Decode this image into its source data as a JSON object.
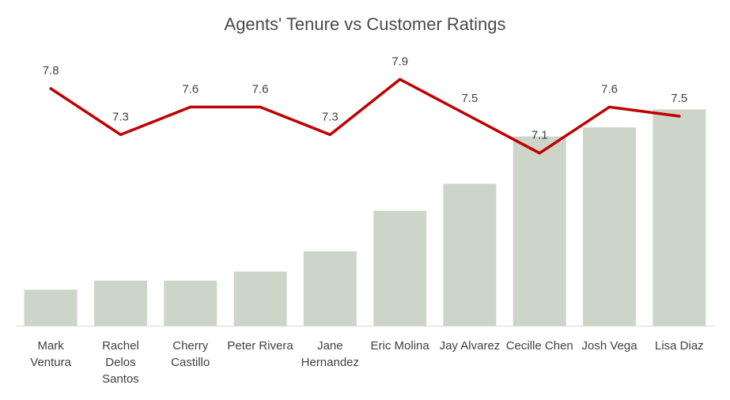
{
  "chart_data": {
    "type": "bar",
    "title": "Agents' Tenure vs Customer Ratings",
    "categories": [
      [
        "Mark",
        "Ventura"
      ],
      [
        "Rachel",
        "Delos",
        "Santos"
      ],
      [
        "Cherry",
        "Castillo"
      ],
      [
        "Peter Rivera"
      ],
      [
        "Jane",
        "Hernandez"
      ],
      [
        "Eric Molina"
      ],
      [
        "Jay Alvarez"
      ],
      [
        "Cecille Chen"
      ],
      [
        "Josh Vega"
      ],
      [
        "Lisa Diaz"
      ]
    ],
    "series": [
      {
        "type": "bar",
        "values": [
          1.6,
          2.0,
          2.0,
          2.4,
          3.3,
          5.1,
          6.3,
          8.4,
          8.8,
          9.6
        ],
        "color": "#ccd5c8"
      },
      {
        "type": "line",
        "values": [
          7.8,
          7.3,
          7.6,
          7.6,
          7.3,
          7.9,
          7.5,
          7.1,
          7.6,
          7.5
        ],
        "data_labels": [
          "7.8",
          "7.3",
          "7.6",
          "7.6",
          "7.3",
          "7.9",
          "7.5",
          "7.1",
          "7.6",
          "7.5"
        ],
        "color": "#c00000"
      }
    ],
    "grid": false,
    "legend": "none",
    "axis_color": "#d9d9d9",
    "text_color": "#404040"
  }
}
